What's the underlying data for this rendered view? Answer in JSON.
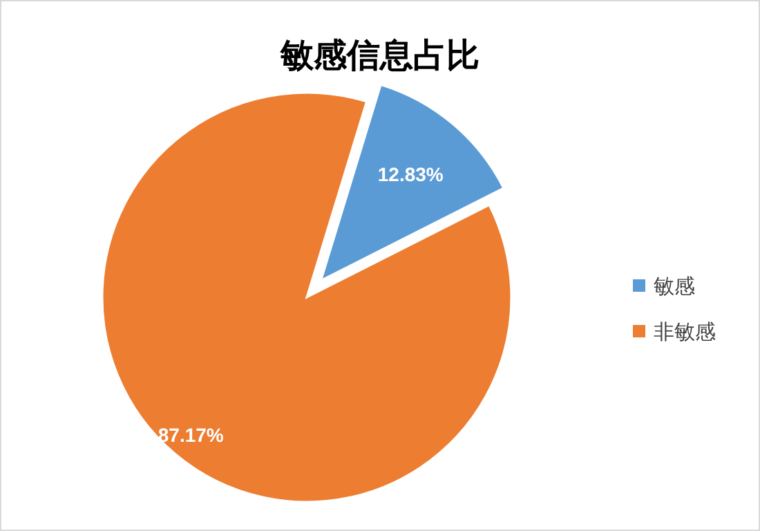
{
  "chart_data": {
    "type": "pie",
    "title": "敏感信息占比",
    "categories": [
      "敏感",
      "非敏感"
    ],
    "values": [
      12.83,
      87.17
    ],
    "colors": [
      "#5b9bd5",
      "#ed7d31"
    ],
    "value_labels": [
      "12.83%",
      "87.17%"
    ],
    "legend": "right"
  }
}
